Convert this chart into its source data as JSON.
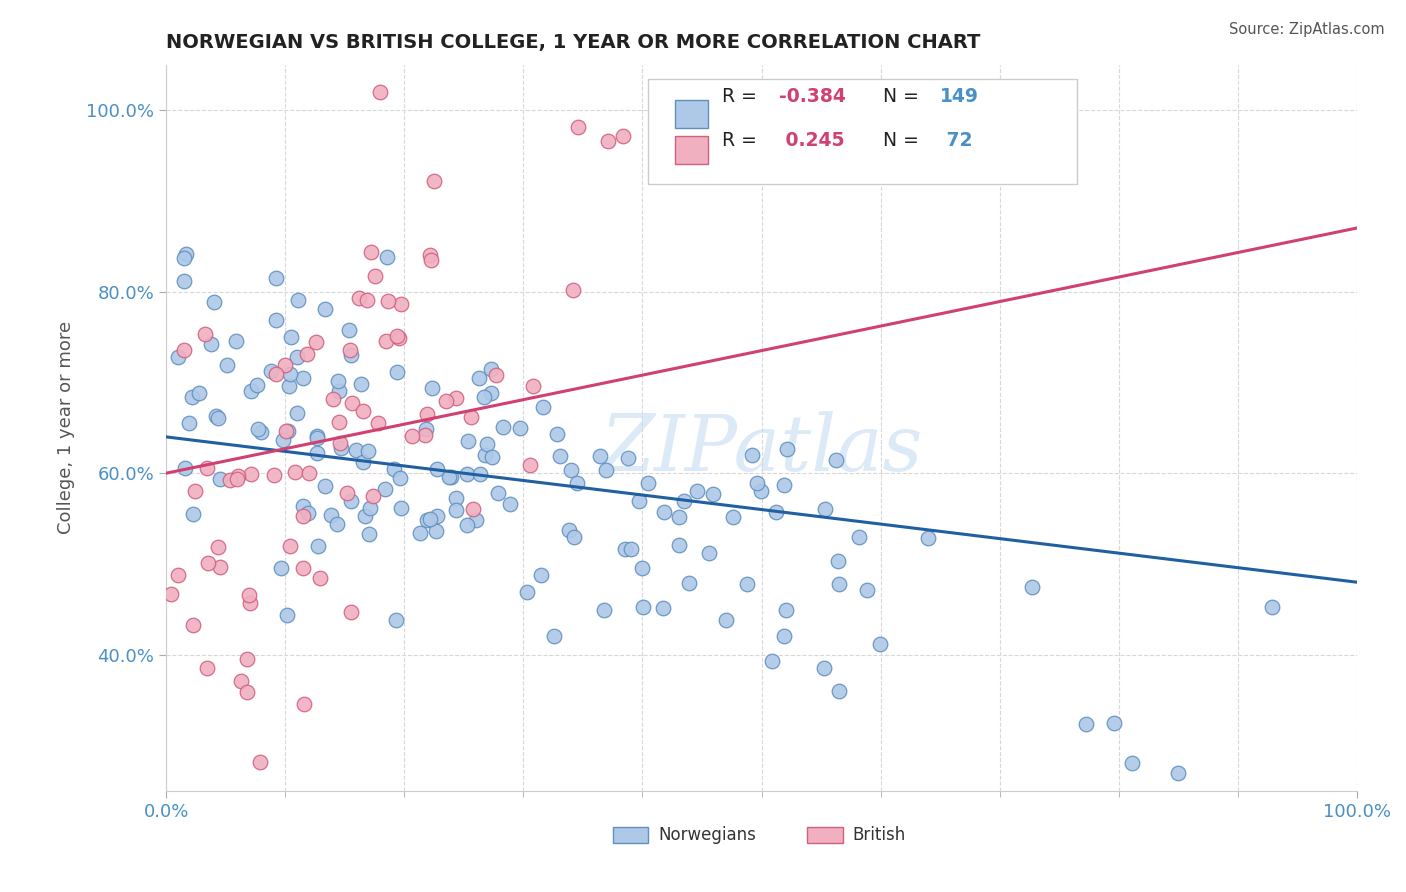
{
  "title": "NORWEGIAN VS BRITISH COLLEGE, 1 YEAR OR MORE CORRELATION CHART",
  "source_text": "Source: ZipAtlas.com",
  "ylabel": "College, 1 year or more",
  "watermark": "ZIPatlas",
  "blue_face_color": "#aec8e8",
  "blue_edge_color": "#6090c0",
  "pink_face_color": "#f0b0c0",
  "pink_edge_color": "#d06080",
  "blue_line_color": "#2060a0",
  "pink_line_color": "#d04070",
  "blue_R": -0.384,
  "pink_R": 0.245,
  "blue_N": 149,
  "pink_N": 72,
  "background_color": "#ffffff",
  "grid_color": "#d8d8d8",
  "title_color": "#222222",
  "axis_tick_color": "#4a90c4",
  "legend_text_color": "#222222",
  "legend_value_color": "#4a90c4",
  "legend_R_neg_color": "#d04070",
  "ylabel_color": "#555555",
  "watermark_color": "#c0d8f0",
  "source_color": "#555555",
  "xlim": [
    0.0,
    1.0
  ],
  "ylim": [
    0.25,
    1.05
  ],
  "yticks": [
    0.4,
    0.6,
    0.8,
    1.0
  ],
  "ytick_labels": [
    "40.0%",
    "60.0%",
    "80.0%",
    "100.0%"
  ]
}
